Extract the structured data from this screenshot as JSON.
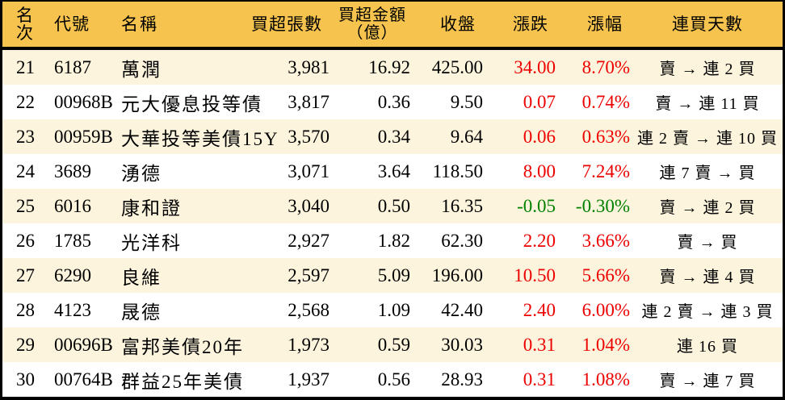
{
  "colors": {
    "header_bg": "#F6C44E",
    "row_alt_bg": "#FCF4DC",
    "row_bg": "#FFFFFF",
    "border": "#000000",
    "up_red": "#EE0000",
    "down_green": "#008000",
    "text": "#000000"
  },
  "chart_data": {
    "type": "table",
    "columns": [
      {
        "key": "rank",
        "label": "名次"
      },
      {
        "key": "code",
        "label": "代號"
      },
      {
        "key": "name",
        "label": "名稱"
      },
      {
        "key": "shares",
        "label": "買超張數"
      },
      {
        "key": "amount",
        "label": "買超金額",
        "label2": "（億）"
      },
      {
        "key": "close",
        "label": "收盤"
      },
      {
        "key": "change",
        "label": "漲跌"
      },
      {
        "key": "pct",
        "label": "漲幅"
      },
      {
        "key": "streak",
        "label": "連買天數"
      }
    ],
    "rows": [
      {
        "rank": "21",
        "code": "6187",
        "name": "萬潤",
        "shares": "3,981",
        "amount": "16.92",
        "close": "425.00",
        "change": "34.00",
        "pct": "8.70%",
        "streak": "賣 → 連 2 買",
        "trend": "up"
      },
      {
        "rank": "22",
        "code": "00968B",
        "name": "元大優息投等債",
        "shares": "3,817",
        "amount": "0.36",
        "close": "9.50",
        "change": "0.07",
        "pct": "0.74%",
        "streak": "賣 → 連 11 買",
        "trend": "up"
      },
      {
        "rank": "23",
        "code": "00959B",
        "name": "大華投等美債15Y",
        "shares": "3,570",
        "amount": "0.34",
        "close": "9.64",
        "change": "0.06",
        "pct": "0.63%",
        "streak": "連 2 賣 → 連 10 買",
        "trend": "up"
      },
      {
        "rank": "24",
        "code": "3689",
        "name": "湧德",
        "shares": "3,071",
        "amount": "3.64",
        "close": "118.50",
        "change": "8.00",
        "pct": "7.24%",
        "streak": "連 7 賣 → 買",
        "trend": "up"
      },
      {
        "rank": "25",
        "code": "6016",
        "name": "康和證",
        "shares": "3,040",
        "amount": "0.50",
        "close": "16.35",
        "change": "-0.05",
        "pct": "-0.30%",
        "streak": "賣 → 連 2 買",
        "trend": "down"
      },
      {
        "rank": "26",
        "code": "1785",
        "name": "光洋科",
        "shares": "2,927",
        "amount": "1.82",
        "close": "62.30",
        "change": "2.20",
        "pct": "3.66%",
        "streak": "賣 → 買",
        "trend": "up"
      },
      {
        "rank": "27",
        "code": "6290",
        "name": "良維",
        "shares": "2,597",
        "amount": "5.09",
        "close": "196.00",
        "change": "10.50",
        "pct": "5.66%",
        "streak": "賣 → 連 4 買",
        "trend": "up"
      },
      {
        "rank": "28",
        "code": "4123",
        "name": "晟德",
        "shares": "2,568",
        "amount": "1.09",
        "close": "42.40",
        "change": "2.40",
        "pct": "6.00%",
        "streak": "連 2 賣 → 連 3 買",
        "trend": "up"
      },
      {
        "rank": "29",
        "code": "00696B",
        "name": "富邦美債20年",
        "shares": "1,973",
        "amount": "0.59",
        "close": "30.03",
        "change": "0.31",
        "pct": "1.04%",
        "streak": "連 16 買",
        "trend": "up"
      },
      {
        "rank": "30",
        "code": "00764B",
        "name": "群益25年美債",
        "shares": "1,937",
        "amount": "0.56",
        "close": "28.93",
        "change": "0.31",
        "pct": "1.08%",
        "streak": "賣 → 連 7 買",
        "trend": "up"
      }
    ]
  }
}
